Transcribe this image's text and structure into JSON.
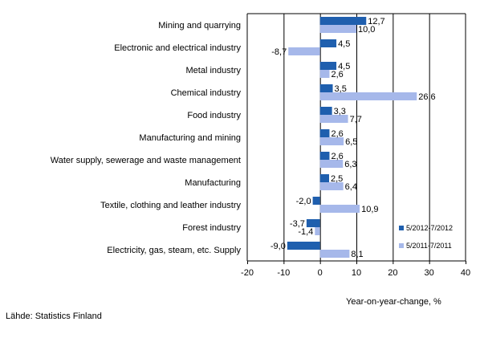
{
  "chart_data": {
    "type": "bar",
    "orientation": "horizontal",
    "categories": [
      "Mining and quarrying",
      "Electronic and electrical industry",
      "Metal industry",
      "Chemical industry",
      "Food industry",
      "Manufacturing and mining",
      "Water supply, sewerage and waste management",
      "Manufacturing",
      "Textile, clothing and leather industry",
      "Forest industry",
      "Electricity, gas, steam, etc. Supply"
    ],
    "series": [
      {
        "name": "5/2012-7/2012",
        "color": "#1f5fae",
        "values": [
          12.7,
          4.5,
          4.5,
          3.5,
          3.3,
          2.6,
          2.6,
          2.5,
          -2.0,
          -3.7,
          -9.0
        ],
        "labels": [
          "12,7",
          "4,5",
          "4,5",
          "3,5",
          "3,3",
          "2,6",
          "2,6",
          "2,5",
          "-2,0",
          "-3,7",
          "-9,0"
        ]
      },
      {
        "name": "5/2011-7/2011",
        "color": "#a6b8ea",
        "values": [
          10.0,
          -8.7,
          2.6,
          26.6,
          7.7,
          6.5,
          6.3,
          6.4,
          10.9,
          -1.4,
          8.1
        ],
        "labels": [
          "10,0",
          "-8,7",
          "2,6",
          "26,6",
          "7,7",
          "6,5",
          "6,3",
          "6,4",
          "10,9",
          "-1,4",
          "8,1"
        ]
      }
    ],
    "xlim": [
      -20,
      40
    ],
    "xticks": [
      -20,
      -10,
      0,
      10,
      20,
      30,
      40
    ],
    "xtick_labels": [
      "-20",
      "-10",
      "0",
      "10",
      "20",
      "30",
      "40"
    ],
    "xlabel": "Year-on-year-change, %",
    "ylabel": "",
    "title": "",
    "grid": "vertical",
    "legend_position": "bottom-right"
  },
  "source": "Lähde: Statistics Finland"
}
